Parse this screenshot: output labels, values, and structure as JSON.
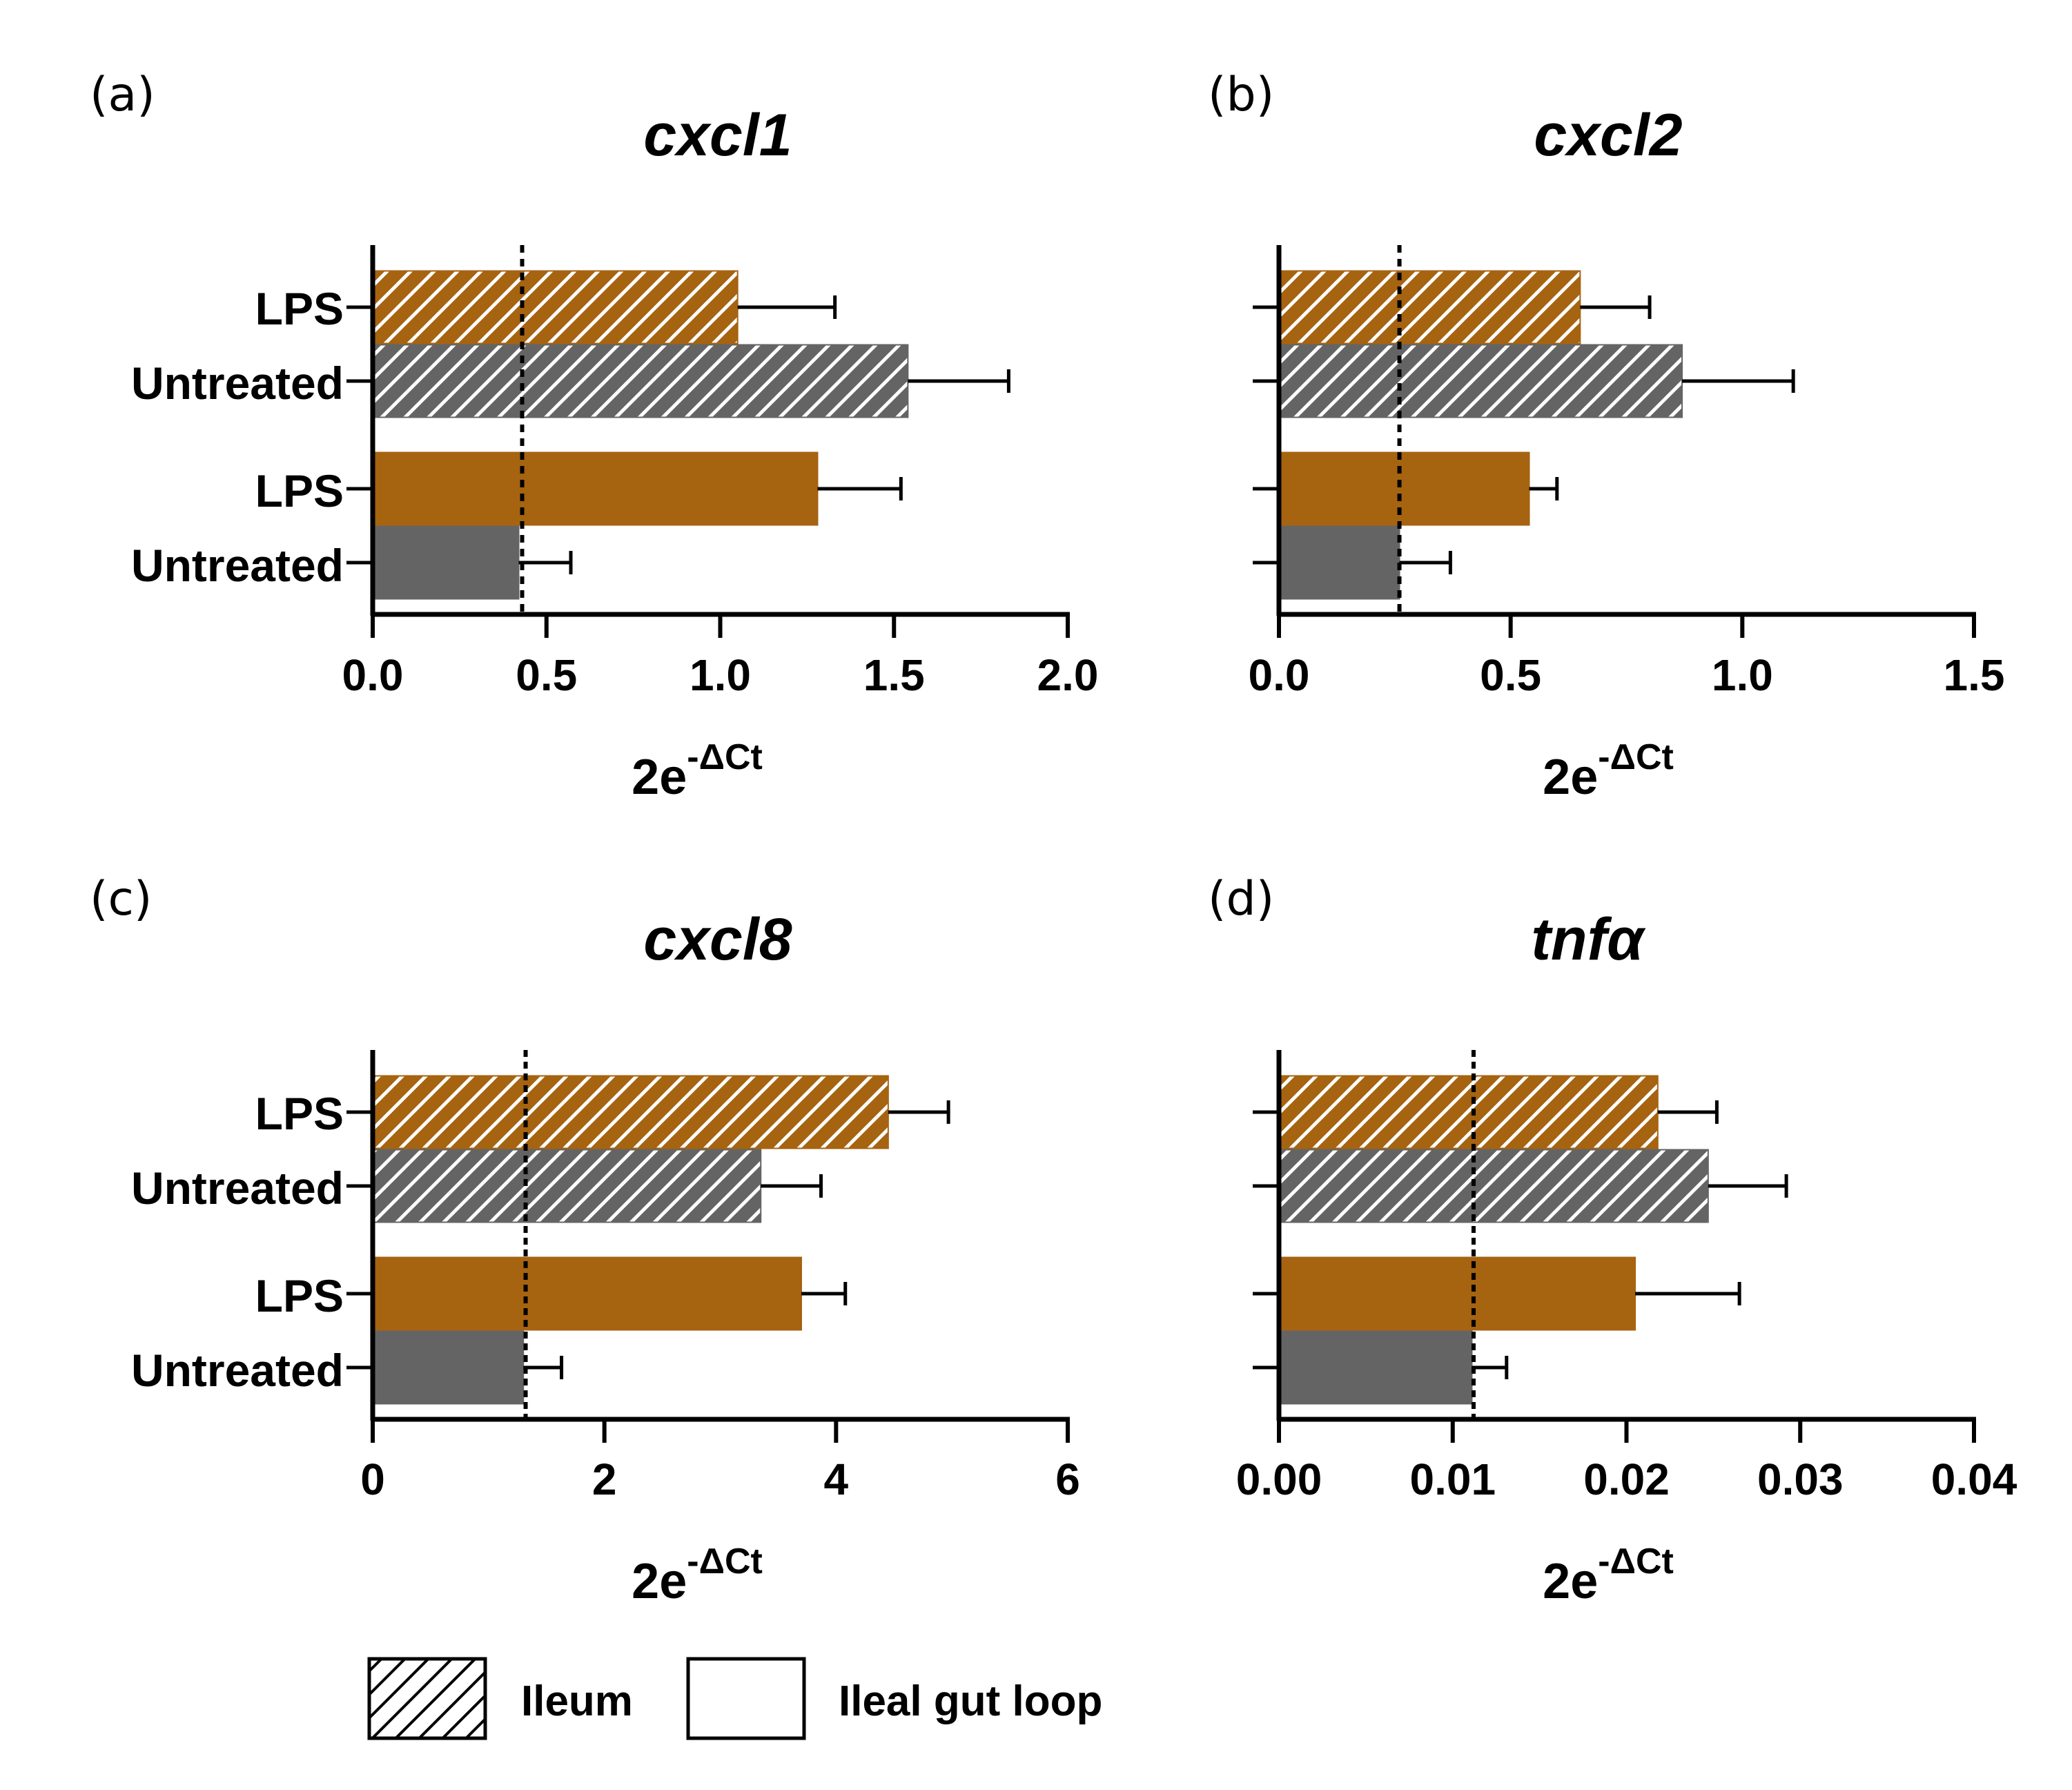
{
  "colors": {
    "lps": "#A66310",
    "untreated": "#646464",
    "axis": "#000000",
    "background": "#ffffff"
  },
  "legend": {
    "items": [
      {
        "label": "Ileum",
        "fill": "hatched"
      },
      {
        "label": "Ileal gut loop",
        "fill": "solid"
      }
    ]
  },
  "chart_data": [
    {
      "panel": "(a)",
      "title": "cxcl1",
      "type": "bar",
      "orientation": "horizontal",
      "xlabel": "2e",
      "xlabel_sup": "-ΔCt",
      "xlim": [
        0,
        2.0
      ],
      "ticks": [
        0,
        0.5,
        1.0,
        1.5,
        2.0
      ],
      "tick_labels": [
        "0.0",
        "0.5",
        "1.0",
        "1.5",
        "2.0"
      ],
      "reference_line": 0.43,
      "show_category_labels": true,
      "bars": [
        {
          "label": "LPS",
          "tissue": "Ileum",
          "treatment": "LPS",
          "hatched": true,
          "value": 1.05,
          "error": 0.28
        },
        {
          "label": "Untreated",
          "tissue": "Ileum",
          "treatment": "Untreated",
          "hatched": true,
          "value": 1.54,
          "error": 0.29
        },
        {
          "label": "LPS",
          "tissue": "Ileal gut loop",
          "treatment": "LPS",
          "hatched": false,
          "value": 1.28,
          "error": 0.24
        },
        {
          "label": "Untreated",
          "tissue": "Ileal gut loop",
          "treatment": "Untreated",
          "hatched": false,
          "value": 0.42,
          "error": 0.15
        }
      ]
    },
    {
      "panel": "(b)",
      "title": "cxcl2",
      "type": "bar",
      "orientation": "horizontal",
      "xlabel": "2e",
      "xlabel_sup": "-ΔCt",
      "xlim": [
        0,
        1.5
      ],
      "ticks": [
        0,
        0.5,
        1.0,
        1.5
      ],
      "tick_labels": [
        "0.0",
        "0.5",
        "1.0",
        "1.5"
      ],
      "reference_line": 0.26,
      "show_category_labels": false,
      "bars": [
        {
          "label": "LPS",
          "tissue": "Ileum",
          "treatment": "LPS",
          "hatched": true,
          "value": 0.65,
          "error": 0.15
        },
        {
          "label": "Untreated",
          "tissue": "Ileum",
          "treatment": "Untreated",
          "hatched": true,
          "value": 0.87,
          "error": 0.24
        },
        {
          "label": "LPS",
          "tissue": "Ileal gut loop",
          "treatment": "LPS",
          "hatched": false,
          "value": 0.54,
          "error": 0.06
        },
        {
          "label": "Untreated",
          "tissue": "Ileal gut loop",
          "treatment": "Untreated",
          "hatched": false,
          "value": 0.26,
          "error": 0.11
        }
      ]
    },
    {
      "panel": "(c)",
      "title": "cxcl8",
      "type": "bar",
      "orientation": "horizontal",
      "xlabel": "2e",
      "xlabel_sup": "-ΔCt",
      "xlim": [
        0,
        6
      ],
      "ticks": [
        0,
        2,
        4,
        6
      ],
      "tick_labels": [
        "0",
        "2",
        "4",
        "6"
      ],
      "reference_line": 1.32,
      "show_category_labels": true,
      "bars": [
        {
          "label": "LPS",
          "tissue": "Ileum",
          "treatment": "LPS",
          "hatched": true,
          "value": 4.45,
          "error": 0.52
        },
        {
          "label": "Untreated",
          "tissue": "Ileum",
          "treatment": "Untreated",
          "hatched": true,
          "value": 3.35,
          "error": 0.52
        },
        {
          "label": "LPS",
          "tissue": "Ileal gut loop",
          "treatment": "LPS",
          "hatched": false,
          "value": 3.7,
          "error": 0.38
        },
        {
          "label": "Untreated",
          "tissue": "Ileal gut loop",
          "treatment": "Untreated",
          "hatched": false,
          "value": 1.3,
          "error": 0.33
        }
      ]
    },
    {
      "panel": "(d)",
      "title": "tnfα",
      "type": "bar",
      "orientation": "horizontal",
      "xlabel": "2e",
      "xlabel_sup": "-ΔCt",
      "xlim": [
        0,
        0.04
      ],
      "ticks": [
        0,
        0.01,
        0.02,
        0.03,
        0.04
      ],
      "tick_labels": [
        "0.00",
        "0.01",
        "0.02",
        "0.03",
        "0.04"
      ],
      "reference_line": 0.0112,
      "show_category_labels": false,
      "bars": [
        {
          "label": "LPS",
          "tissue": "Ileum",
          "treatment": "LPS",
          "hatched": true,
          "value": 0.0218,
          "error": 0.0034
        },
        {
          "label": "Untreated",
          "tissue": "Ileum",
          "treatment": "Untreated",
          "hatched": true,
          "value": 0.0247,
          "error": 0.0045
        },
        {
          "label": "LPS",
          "tissue": "Ileal gut loop",
          "treatment": "LPS",
          "hatched": false,
          "value": 0.0205,
          "error": 0.006
        },
        {
          "label": "Untreated",
          "tissue": "Ileal gut loop",
          "treatment": "Untreated",
          "hatched": false,
          "value": 0.0111,
          "error": 0.002
        }
      ]
    }
  ]
}
